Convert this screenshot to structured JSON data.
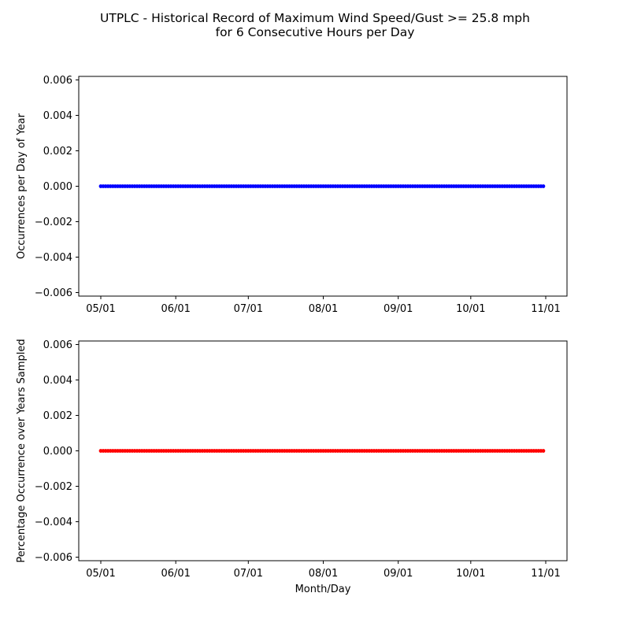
{
  "title_line1": "UTPLC - Historical Record of Maximum Wind Speed/Gust >= 25.8 mph",
  "title_line2": "for 6 Consecutive Hours per Day",
  "chart_data": [
    {
      "type": "scatter",
      "title": "",
      "xlabel": "",
      "ylabel": "Occurrences per Day of Year",
      "x_start": "05/01",
      "x_end": "10/31",
      "x_ticks": [
        "05/01",
        "06/01",
        "07/01",
        "08/01",
        "09/01",
        "10/01",
        "11/01"
      ],
      "ylim": [
        -0.0062,
        0.0062
      ],
      "y_ticks": [
        "0.006",
        "0.004",
        "0.002",
        "0.000",
        "−0.002",
        "−0.004",
        "−0.006"
      ],
      "series": [
        {
          "color": "#0000ff",
          "value_all_days": 0.0
        }
      ],
      "grid": false
    },
    {
      "type": "scatter",
      "title": "",
      "xlabel": "Month/Day",
      "ylabel": "Percentage Occurrence over Years Sampled",
      "x_start": "05/01",
      "x_end": "10/31",
      "x_ticks": [
        "05/01",
        "06/01",
        "07/01",
        "08/01",
        "09/01",
        "10/01",
        "11/01"
      ],
      "ylim": [
        -0.0062,
        0.0062
      ],
      "y_ticks": [
        "0.006",
        "0.004",
        "0.002",
        "0.000",
        "−0.002",
        "−0.004",
        "−0.006"
      ],
      "series": [
        {
          "color": "#ff0000",
          "value_all_days": 0.0
        }
      ],
      "grid": false
    }
  ]
}
